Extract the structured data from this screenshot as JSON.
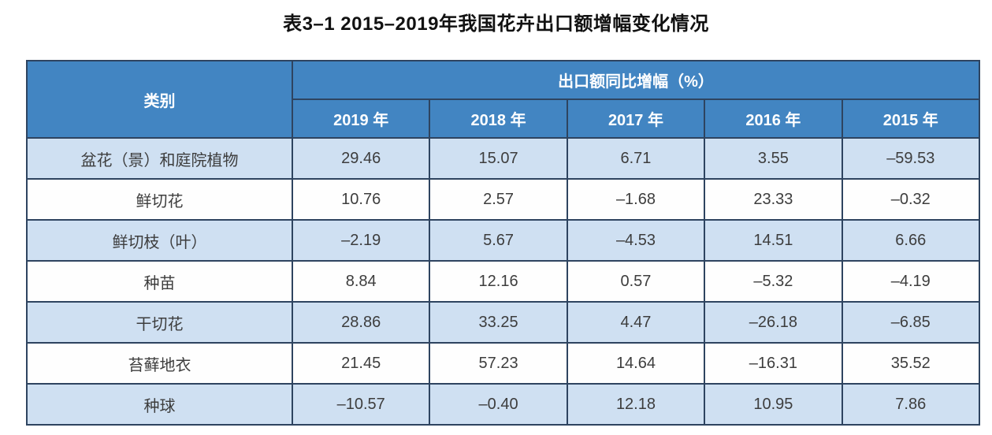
{
  "title": "表3–1  2015–2019年我国花卉出口额增幅变化情况",
  "colors": {
    "header_blue": "#4285c2",
    "row_light_blue": "#cfe0f2",
    "row_white": "#fefefe",
    "border": "#2e4460",
    "header_text": "#ffffff",
    "cell_text": "#3d3d3d"
  },
  "chart_data": {
    "type": "table",
    "title": "表3–1 2015–2019年我国花卉出口额增幅变化情况",
    "row_header": "类别",
    "group_header": "出口额同比增幅（%）",
    "columns": [
      "2019 年",
      "2018 年",
      "2017 年",
      "2016 年",
      "2015 年"
    ],
    "rows": [
      {
        "category": "盆花（景）和庭院植物",
        "values": [
          29.46,
          15.07,
          6.71,
          3.55,
          -59.53
        ]
      },
      {
        "category": "鲜切花",
        "values": [
          10.76,
          2.57,
          -1.68,
          23.33,
          -0.32
        ]
      },
      {
        "category": "鲜切枝（叶）",
        "values": [
          -2.19,
          5.67,
          -4.53,
          14.51,
          6.66
        ]
      },
      {
        "category": "种苗",
        "values": [
          8.84,
          12.16,
          0.57,
          -5.32,
          -4.19
        ]
      },
      {
        "category": "干切花",
        "values": [
          28.86,
          33.25,
          4.47,
          -26.18,
          -6.85
        ]
      },
      {
        "category": "苔藓地衣",
        "values": [
          21.45,
          57.23,
          14.64,
          -16.31,
          35.52
        ]
      },
      {
        "category": "种球",
        "values": [
          -10.57,
          -0.4,
          12.18,
          10.95,
          7.86
        ]
      }
    ],
    "layout": {
      "striped": true,
      "stripe_start_row": "light_blue",
      "negative_sign_glyph": "–",
      "decimals": 2
    }
  }
}
